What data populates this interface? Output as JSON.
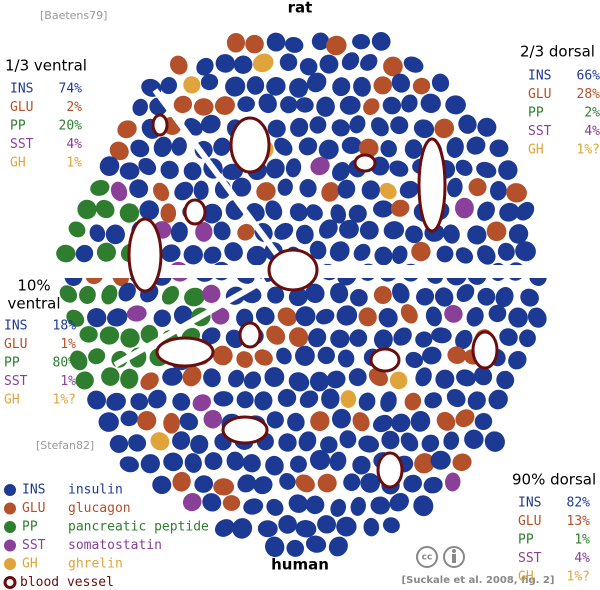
{
  "title_top": "rat",
  "title_bottom": "human",
  "source_top": "[Baetens79]",
  "source_mid": "[Stefan82]",
  "citation": "[Suckale et al. 2008, fig. 2]",
  "license_icon": "cc",
  "panels": [
    {
      "heading": [
        "1/3 ventral"
      ],
      "rows": [
        {
          "code": "INS",
          "pct": "74%"
        },
        {
          "code": "GLU",
          "pct": "2%"
        },
        {
          "code": "PP",
          "pct": "20%"
        },
        {
          "code": "SST",
          "pct": "4%"
        },
        {
          "code": "GH",
          "pct": "1%"
        }
      ]
    },
    {
      "heading": [
        "2/3 dorsal"
      ],
      "rows": [
        {
          "code": "INS",
          "pct": "66%"
        },
        {
          "code": "GLU",
          "pct": "28%"
        },
        {
          "code": "PP",
          "pct": "2%"
        },
        {
          "code": "SST",
          "pct": "4%"
        },
        {
          "code": "GH",
          "pct": "1%?"
        }
      ]
    },
    {
      "heading": [
        "10%",
        "ventral"
      ],
      "rows": [
        {
          "code": "INS",
          "pct": "18%"
        },
        {
          "code": "GLU",
          "pct": "1%"
        },
        {
          "code": "PP",
          "pct": "80%"
        },
        {
          "code": "SST",
          "pct": "1%"
        },
        {
          "code": "GH",
          "pct": "1%?"
        }
      ]
    },
    {
      "heading": [
        "90% dorsal"
      ],
      "rows": [
        {
          "code": "INS",
          "pct": "82%"
        },
        {
          "code": "GLU",
          "pct": "13%"
        },
        {
          "code": "PP",
          "pct": "1%"
        },
        {
          "code": "SST",
          "pct": "4%"
        },
        {
          "code": "GH",
          "pct": "1%?"
        }
      ]
    }
  ],
  "legend": [
    {
      "code": "INS",
      "label": "insulin",
      "color": "#1c3a94"
    },
    {
      "code": "GLU",
      "label": "glucagon",
      "color": "#b4512a"
    },
    {
      "code": "PP",
      "label": "pancreatic peptide",
      "color": "#2f7d2f"
    },
    {
      "code": "SST",
      "label": "somatostatin",
      "color": "#8a3f98"
    },
    {
      "code": "GH",
      "label": "ghrelin",
      "color": "#e0a43a"
    }
  ],
  "vessel": {
    "label": "blood vessel",
    "color": "#6a0d0d"
  }
}
